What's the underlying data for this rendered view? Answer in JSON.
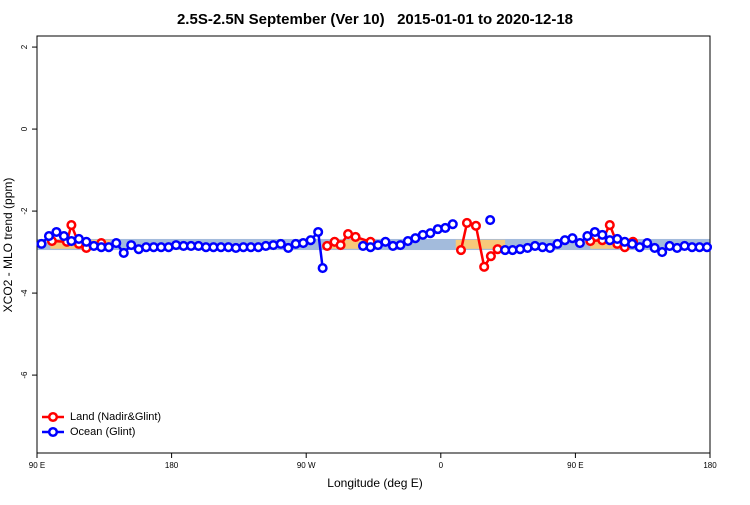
{
  "chart_data": {
    "type": "line",
    "title": "2.5S-2.5N September (Ver 10)   2015-01-01 to 2020-12-18",
    "xlabel": "Longitude (deg E)",
    "ylabel": "XCO2 - MLO trend (ppm)",
    "xlim": [
      90,
      540
    ],
    "ylim": [
      -7.9,
      2.27
    ],
    "xticks": [
      {
        "value": 90,
        "label": "90 E"
      },
      180,
      {
        "value": 270,
        "label": "90 W"
      },
      {
        "value": 360,
        "label": "0"
      },
      {
        "value": 450,
        "label": "90 E"
      },
      {
        "value": 540,
        "label": "180"
      }
    ],
    "yticks": [
      -6,
      -4,
      -2,
      0,
      2
    ],
    "legend": "bottomleft",
    "bands": [
      {
        "color": "#a3bbdc",
        "x": [
          90,
          540
        ],
        "y": [
          -2.95,
          -2.68
        ]
      },
      {
        "color": "#f7c97a",
        "x": [
          99,
          139
        ],
        "y": [
          -2.92,
          -2.7
        ]
      },
      {
        "color": "#f7c97a",
        "x": [
          286,
          313
        ],
        "y": [
          -2.92,
          -2.7
        ]
      },
      {
        "color": "#f7c97a",
        "x": [
          370,
          403
        ],
        "y": [
          -2.92,
          -2.7
        ]
      },
      {
        "color": "#f7c97a",
        "x": [
          460,
          480
        ],
        "y": [
          -2.92,
          -2.7
        ]
      }
    ],
    "series": [
      {
        "name": "Land (Nadir&Glint)",
        "color": "#ff0000",
        "x": [
          100,
          110,
          113,
          118,
          123,
          133,
          200,
          284,
          289,
          293,
          298,
          303,
          313,
          330,
          373.5,
          377.5,
          383.5,
          389,
          393.5,
          398,
          430,
          460,
          468,
          473,
          478,
          483,
          488.5
        ],
        "values": [
          -2.73,
          -2.75,
          -2.34,
          -2.8,
          -2.9,
          -2.78,
          null,
          -2.85,
          -2.75,
          -2.83,
          -2.56,
          -2.63,
          -2.75,
          null,
          -2.95,
          -2.29,
          -2.36,
          -3.36,
          -3.1,
          -2.93,
          null,
          -2.73,
          -2.71,
          -2.34,
          -2.8,
          -2.88,
          -2.75
        ]
      },
      {
        "name": "Ocean (Glint)",
        "color": "#0000ff",
        "x": [
          93,
          98,
          103,
          108,
          113,
          118,
          123,
          128,
          133,
          138,
          143,
          148,
          153,
          158,
          163,
          168,
          173,
          178,
          183,
          188,
          193,
          198,
          203,
          208,
          213,
          218,
          223,
          228,
          233,
          238,
          243,
          248,
          253,
          258,
          263,
          268,
          273,
          278,
          281,
          295,
          308,
          313,
          318,
          323,
          328,
          333,
          338,
          343,
          348,
          353,
          358,
          363,
          368,
          380,
          393,
          398,
          403,
          408,
          413,
          418,
          423,
          428,
          433,
          438,
          443,
          448,
          453,
          458,
          463,
          468,
          473,
          478,
          483,
          488,
          493,
          498,
          503,
          508,
          513,
          518,
          523,
          528,
          533,
          538
        ],
        "values": [
          -2.8,
          -2.61,
          -2.51,
          -2.61,
          -2.73,
          -2.68,
          -2.75,
          -2.85,
          -2.88,
          -2.88,
          -2.78,
          -3.02,
          -2.83,
          -2.93,
          -2.88,
          -2.88,
          -2.88,
          -2.88,
          -2.83,
          -2.85,
          -2.85,
          -2.85,
          -2.88,
          -2.88,
          -2.88,
          -2.88,
          -2.9,
          -2.88,
          -2.88,
          -2.88,
          -2.85,
          -2.83,
          -2.8,
          -2.9,
          -2.8,
          -2.78,
          -2.71,
          -2.51,
          -3.39,
          null,
          -2.85,
          -2.88,
          -2.83,
          -2.75,
          -2.85,
          -2.83,
          -2.73,
          -2.66,
          -2.58,
          -2.54,
          -2.44,
          -2.41,
          -2.32,
          null,
          -2.22,
          null,
          -2.95,
          -2.95,
          -2.93,
          -2.9,
          -2.85,
          -2.88,
          -2.9,
          -2.8,
          -2.71,
          -2.66,
          -2.78,
          -2.61,
          -2.51,
          -2.58,
          -2.71,
          -2.68,
          -2.75,
          -2.8,
          -2.88,
          -2.78,
          -2.9,
          -3.0,
          -2.85,
          -2.9,
          -2.85,
          -2.88,
          -2.88,
          -2.88
        ]
      }
    ]
  }
}
